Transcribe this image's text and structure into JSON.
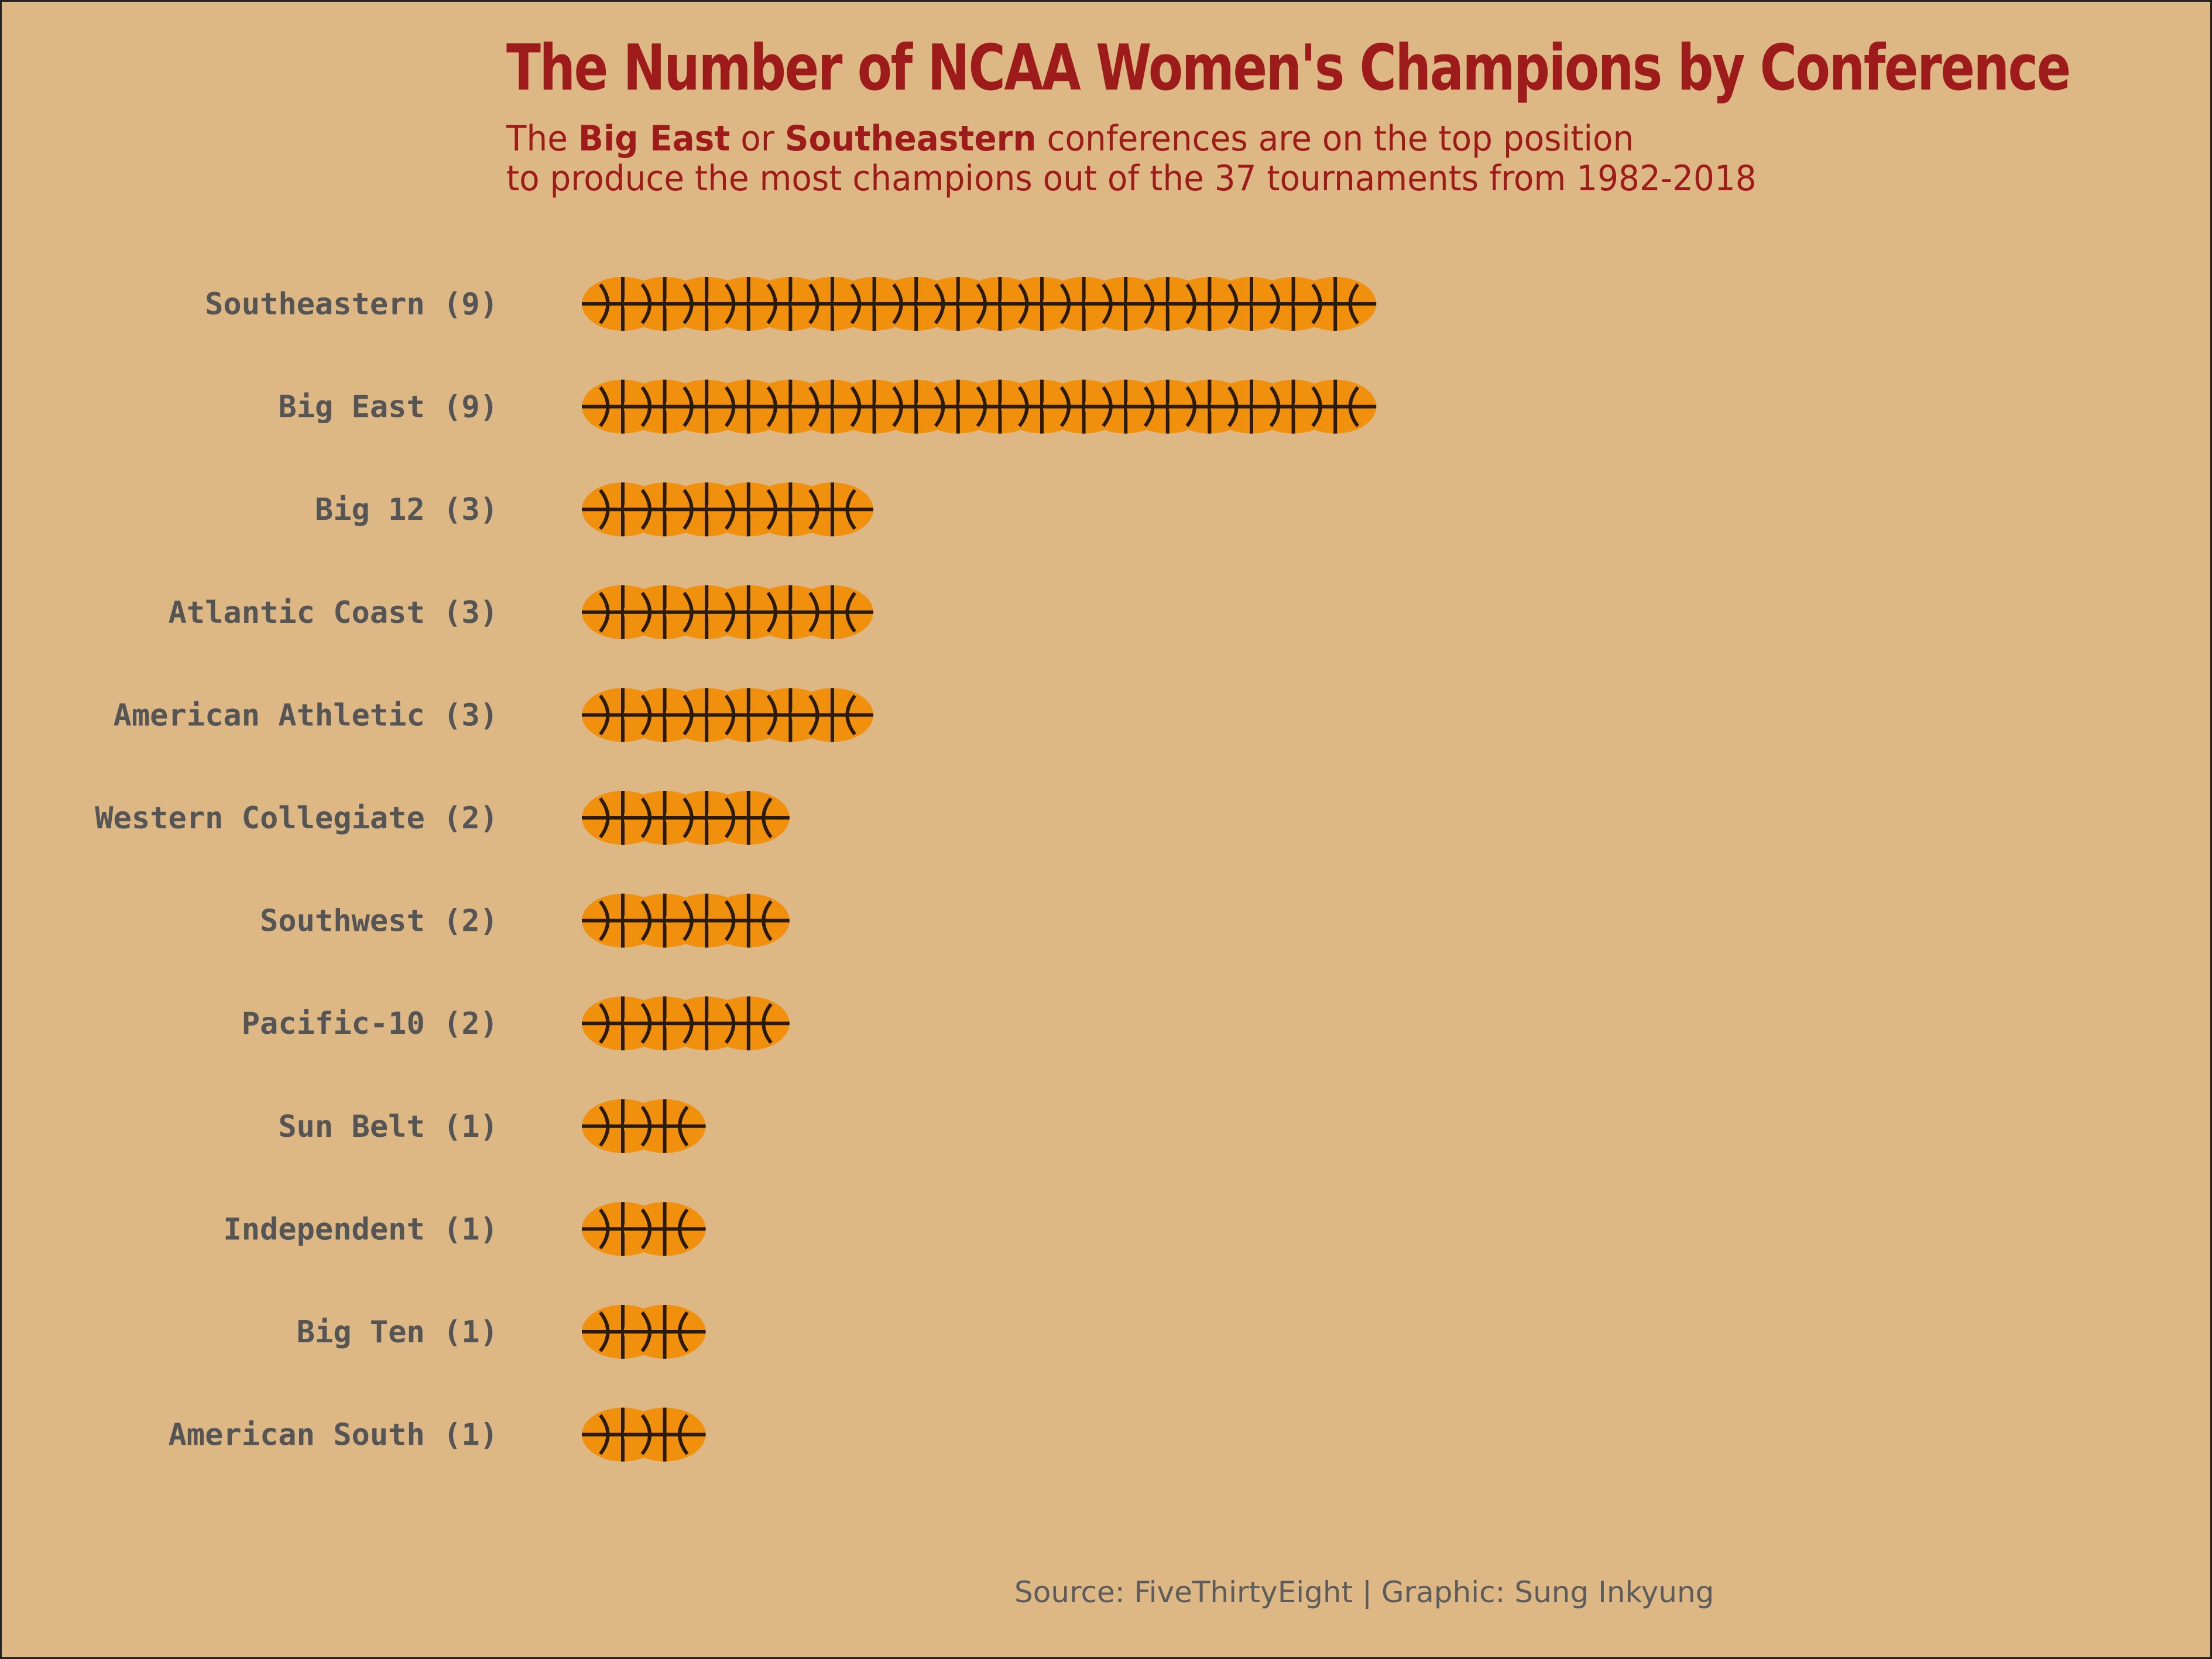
{
  "title": "The Number of NCAA Women's Champions by Conference",
  "subtitle": {
    "prefix": "The ",
    "highlight_1": "Big East",
    "middle": " or ",
    "highlight_2": "Southeastern",
    "suffix": " conferences are on the top position",
    "line_2": "to produce the most champions out of the 37 tournaments from 1982-2018"
  },
  "source": "Source: FiveThirtyEight | Graphic:  Sung Inkyung",
  "colors": {
    "background": "#ddb884",
    "title": "#9e1b1b",
    "label": "#555555",
    "ball": "#f0900c",
    "seam": "#2a1a08"
  },
  "icon": "basketball-icon",
  "chart_data": {
    "type": "bar",
    "orientation": "horizontal",
    "mark": "pictograph",
    "categories": [
      "Southeastern (9)",
      "Big East (9)",
      "Big 12 (3)",
      "Atlantic Coast (3)",
      "American Athletic (3)",
      "Western Collegiate (2)",
      "Southwest (2)",
      "Pacific-10 (2)",
      "Sun Belt (1)",
      "Independent (1)",
      "Big Ten (1)",
      "American South (1)"
    ],
    "values": [
      9,
      9,
      3,
      3,
      3,
      2,
      2,
      2,
      1,
      1,
      1,
      1
    ],
    "grid": false,
    "legend": "none"
  }
}
